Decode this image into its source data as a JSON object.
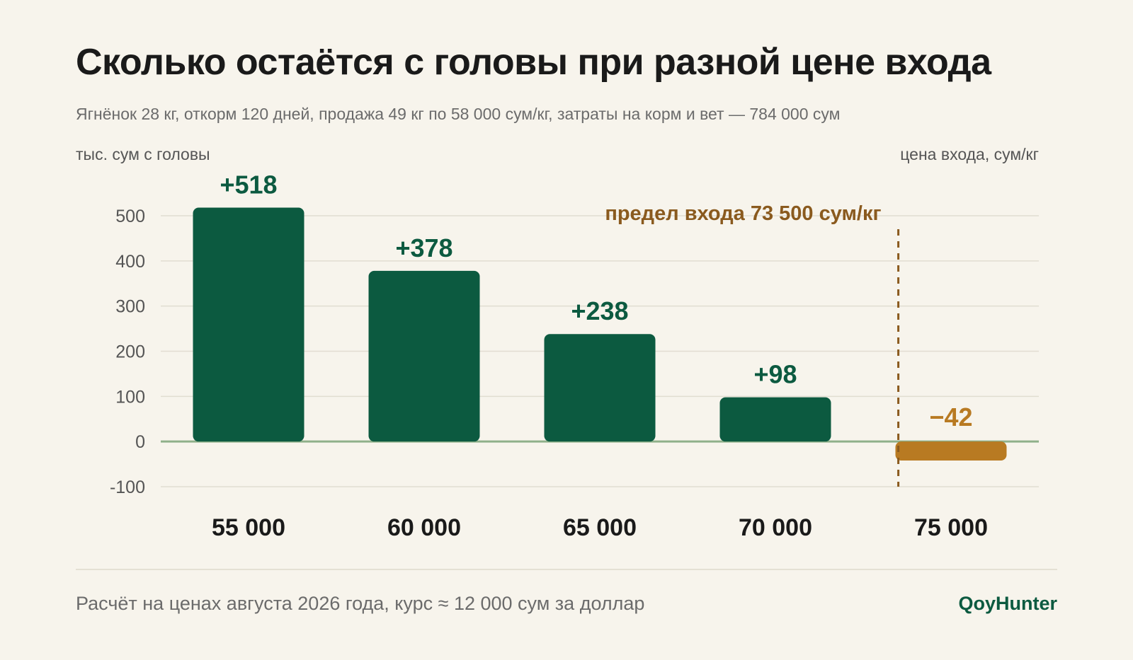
{
  "title": "Сколько остаётся с головы при разной цене входа",
  "subtitle": "Ягнёнок 28 кг, откорм 120 дней, продажа 49 кг по 58 000 сум/кг, затраты на корм и вет — 784 000 сум",
  "footer": {
    "note": "Расчёт на ценах августа 2026 года, курс ≈ 12 000 сум за доллар",
    "brand": "QoyHunter"
  },
  "colors": {
    "positive": "#0c5a40",
    "negative": "#b87a22",
    "limit": "#8a5a1e",
    "zero_line": "#8fb08a",
    "grid": "#e1ddd1"
  },
  "chart_data": {
    "type": "bar",
    "ylabel": "тыс. сум с головы",
    "xlabel": "цена входа, сум/кг",
    "ylim": [
      -100,
      500
    ],
    "yticks": [
      500,
      400,
      300,
      200,
      100,
      0,
      -100
    ],
    "grid": true,
    "categories": [
      "55 000",
      "60 000",
      "65 000",
      "70 000",
      "75 000"
    ],
    "values": [
      518,
      378,
      238,
      98,
      -42
    ],
    "value_labels": [
      "+518",
      "+378",
      "+238",
      "+98",
      "−42"
    ],
    "annotation": {
      "text": "предел входа 73 500 сум/кг",
      "x_value": 73500
    }
  }
}
